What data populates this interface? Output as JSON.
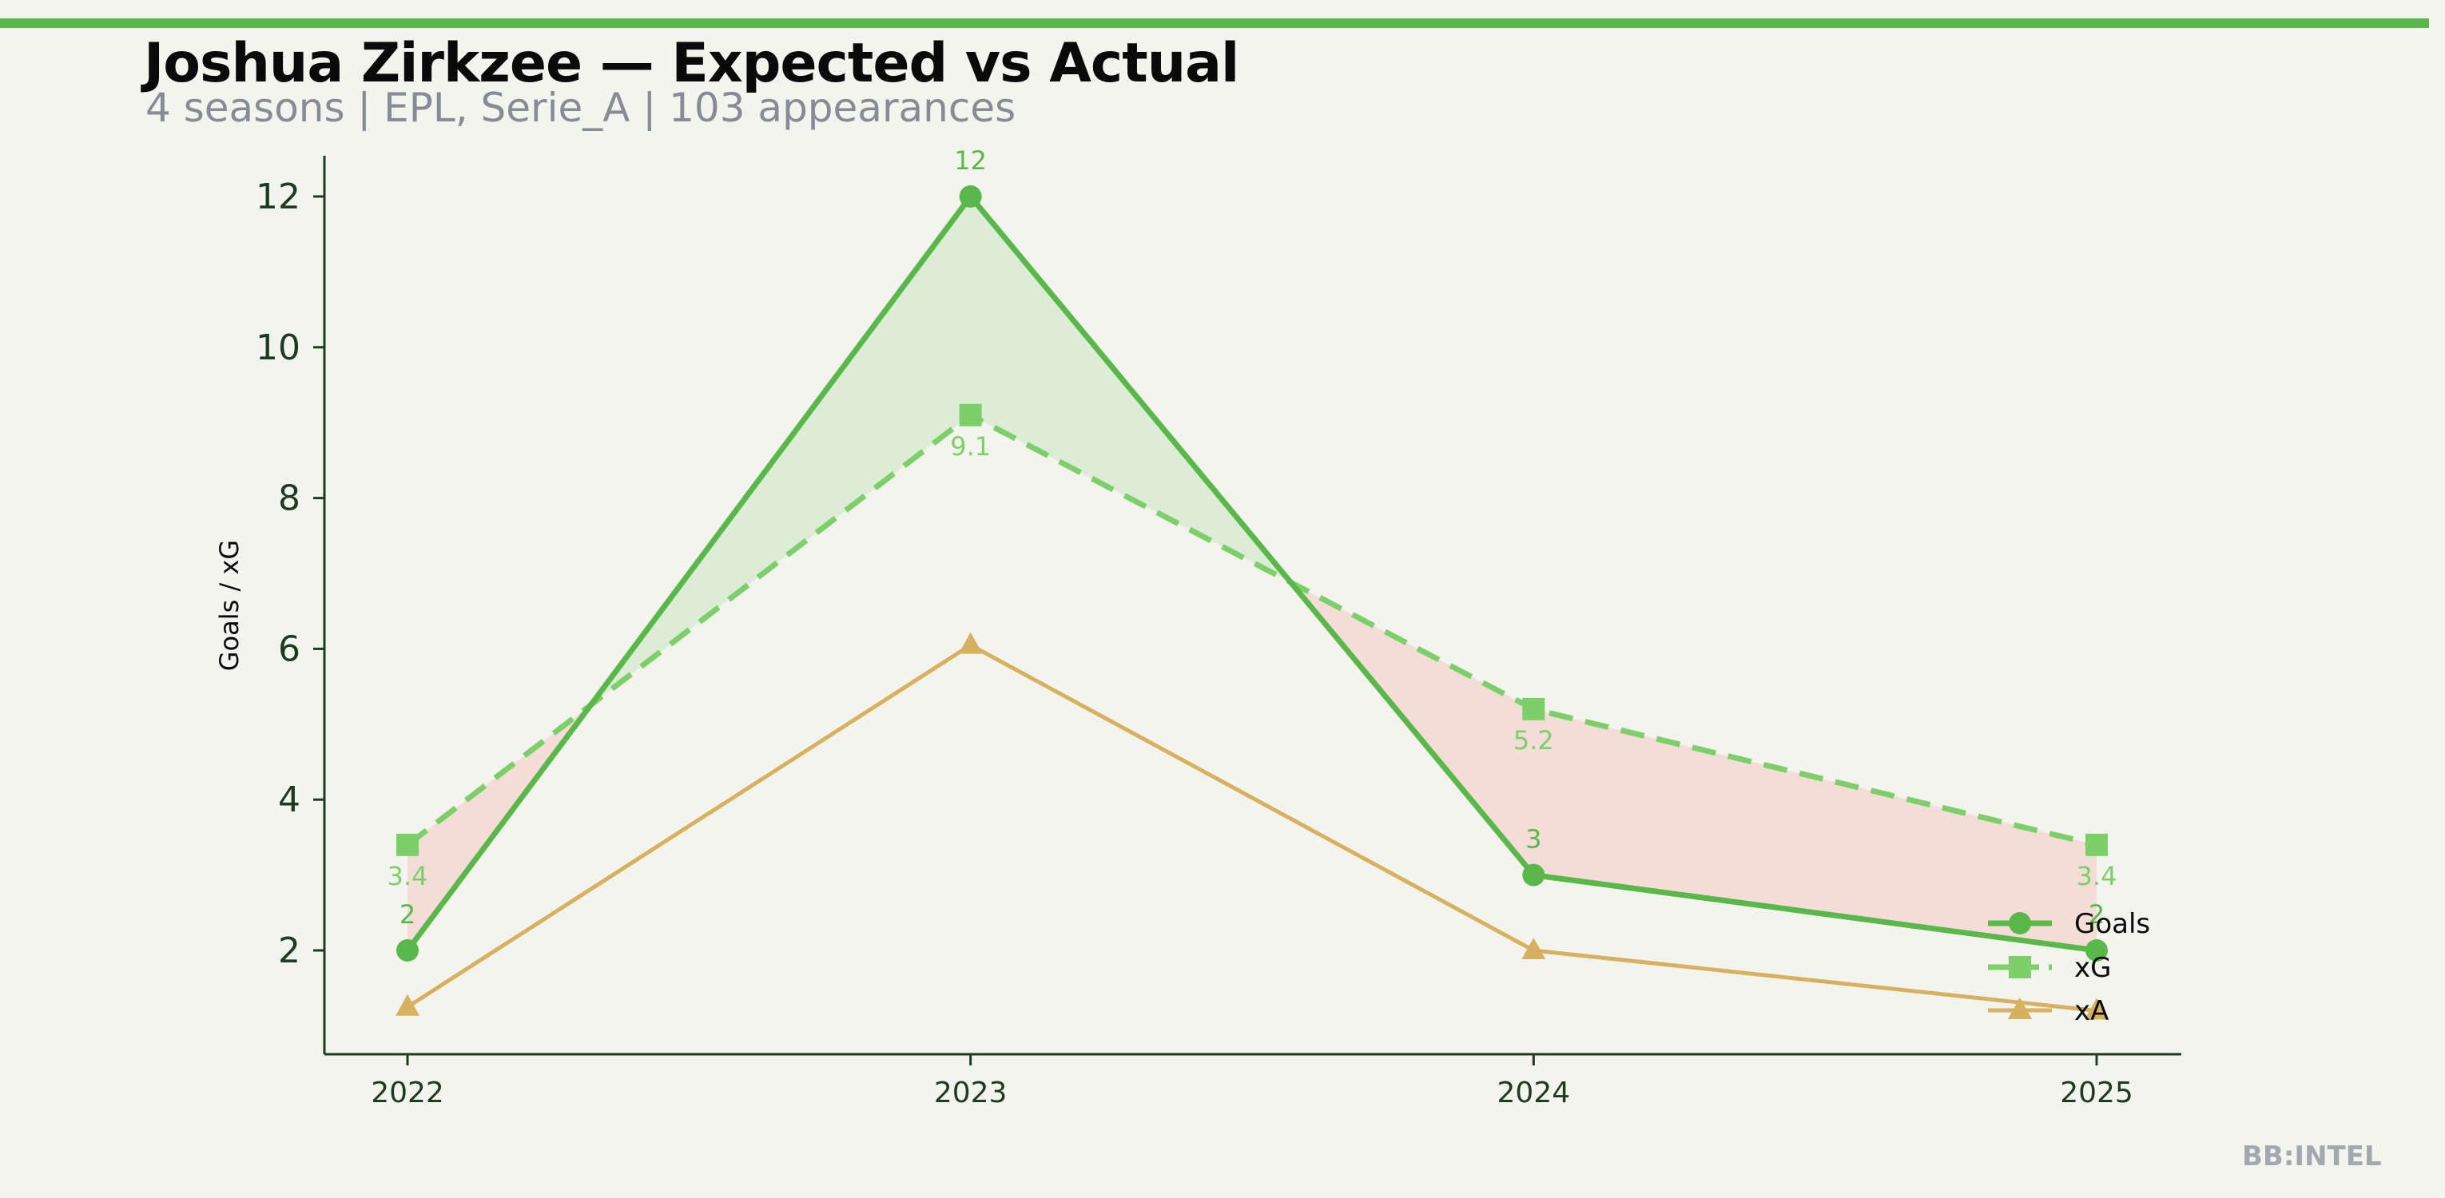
{
  "header": {
    "title": "Joshua Zirkzee — Expected vs Actual",
    "subtitle": "4 seasons | EPL, Serie_A | 103 appearances"
  },
  "brand": "BB:INTEL",
  "colors": {
    "goals": "#5ab84a",
    "xg": "#7dcf6a",
    "xa": "#d8b160",
    "overperform_fill": "#dcecd6",
    "underperform_fill": "#f4ddd7",
    "axis": "#1e3a20",
    "background": "#f4f4ee",
    "accent_bar": "#5ab84a"
  },
  "chart_data": {
    "type": "line",
    "title": "Joshua Zirkzee — Expected vs Actual",
    "xlabel": "",
    "ylabel": "Goals / xG",
    "x": [
      "2022",
      "2023",
      "2024",
      "2025"
    ],
    "yticks": [
      2,
      4,
      6,
      8,
      10,
      12
    ],
    "ylim": [
      1,
      12.5
    ],
    "grid": false,
    "legend_position": "bottom-right",
    "series": [
      {
        "name": "Goals",
        "key": "goals",
        "values": [
          2,
          12,
          3,
          2
        ],
        "marker": "circle",
        "line": "solid",
        "labels": [
          "2",
          "12",
          "3",
          "2"
        ]
      },
      {
        "name": "xG",
        "key": "xg",
        "values": [
          3.4,
          9.1,
          5.2,
          3.4
        ],
        "marker": "square",
        "line": "dashed",
        "labels": [
          "3.4",
          "9.1",
          "5.2",
          "3.4"
        ]
      },
      {
        "name": "xA",
        "key": "xa",
        "values": [
          1.25,
          6.05,
          2.0,
          1.2
        ],
        "marker": "triangle",
        "line": "solid"
      }
    ]
  }
}
